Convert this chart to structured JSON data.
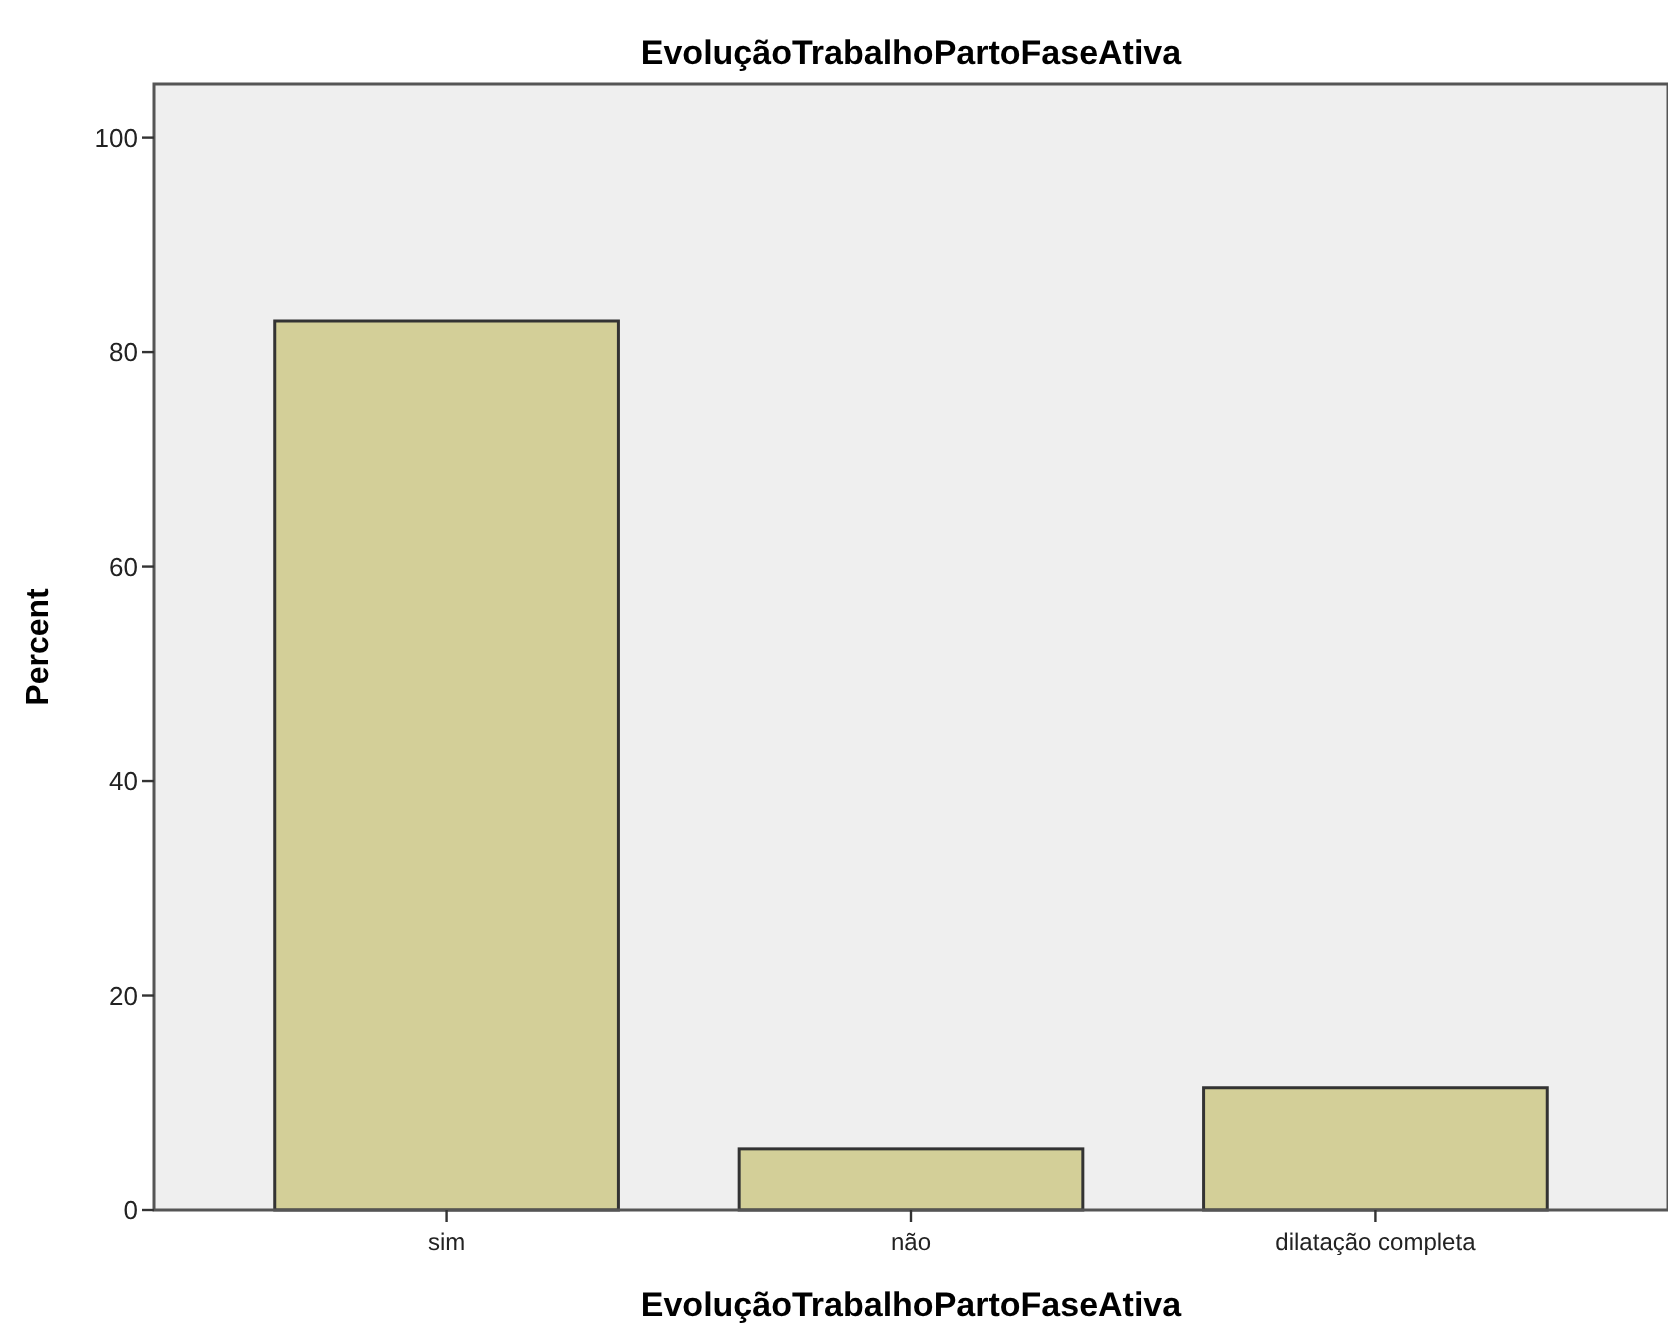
{
  "chart_data": {
    "type": "bar",
    "title": "EvoluçãoTrabalhoPartoFaseAtiva",
    "xlabel": "EvoluçãoTrabalhoPartoFaseAtiva",
    "ylabel": "Percent",
    "categories": [
      "sim",
      "não",
      "dilatação completa"
    ],
    "values": [
      82.9,
      5.7,
      11.4
    ],
    "color": "#d3cf98",
    "ylim": [
      0,
      105
    ],
    "yticks": [
      0,
      20,
      40,
      60,
      80,
      100
    ],
    "grid": false
  }
}
